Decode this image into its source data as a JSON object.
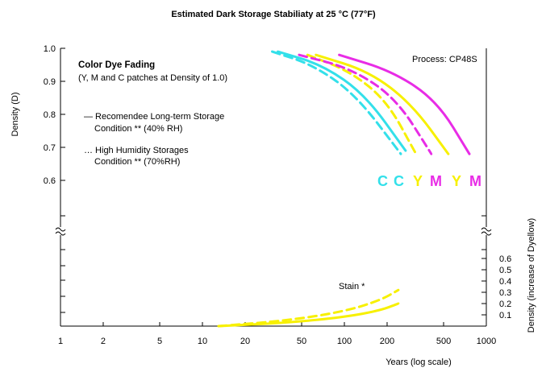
{
  "chart_data": {
    "type": "line",
    "title": "Estimated Dark Storage Stabiliaty at 25 °C (77°F)",
    "xlabel": "Years (log scale)",
    "ylabel": "Density (D)",
    "y2label": "Density (increase of Dyellow)",
    "x_scale": "log",
    "xlim": [
      1,
      1000
    ],
    "ylim": [
      0.55,
      1.0
    ],
    "y2lim": [
      0.0,
      0.6
    ],
    "grid": false,
    "x_ticks": [
      "1",
      "2",
      "5",
      "10",
      "20",
      "50",
      "100",
      "200",
      "500",
      "1000"
    ],
    "y_ticks": [
      "1.0",
      "0.9",
      "0.8",
      "0.7",
      "0.6"
    ],
    "y2_ticks": [
      "0.6",
      "0.5",
      "0.4",
      "0.3",
      "0.2",
      "0.1"
    ],
    "annotations": {
      "process": "Process: CP48S",
      "fading_title": "Color Dye Fading",
      "fading_sub": "(Y, M and C patches at Density of 1.0)",
      "legend_solid_1": "— Recomendee Long-term Storage",
      "legend_solid_2": "Condition ** (40% RH)",
      "legend_dotted_1": "… High Humidity Storages",
      "legend_dotted_2": "Condition ** (70%RH)",
      "stain": "Stain *"
    },
    "curve_labels": [
      "C",
      "C",
      "Y",
      "M",
      "Y",
      "M"
    ],
    "colors": {
      "cyan": "#33e0ea",
      "yellow": "#f7f000",
      "magenta": "#e82ce6"
    },
    "series": [
      {
        "label": "C",
        "color": "cyan",
        "style": "dashed",
        "x": [
          31,
          60,
          120,
          250
        ],
        "y": [
          0.99,
          0.95,
          0.86,
          0.68
        ]
      },
      {
        "label": "C",
        "color": "cyan",
        "style": "solid",
        "x": [
          34,
          70,
          140,
          270
        ],
        "y": [
          0.99,
          0.95,
          0.86,
          0.69
        ]
      },
      {
        "label": "Y",
        "color": "yellow",
        "style": "dashed",
        "x": [
          55,
          110,
          200,
          320
        ],
        "y": [
          0.98,
          0.93,
          0.84,
          0.68
        ]
      },
      {
        "label": "M",
        "color": "magenta",
        "style": "dashed",
        "x": [
          48,
          110,
          230,
          410
        ],
        "y": [
          0.98,
          0.94,
          0.85,
          0.68
        ]
      },
      {
        "label": "Y",
        "color": "yellow",
        "style": "solid",
        "x": [
          63,
          150,
          300,
          540
        ],
        "y": [
          0.98,
          0.93,
          0.83,
          0.68
        ]
      },
      {
        "label": "M",
        "color": "magenta",
        "style": "solid",
        "x": [
          92,
          220,
          450,
          760
        ],
        "y": [
          0.98,
          0.93,
          0.84,
          0.68
        ]
      },
      {
        "label": "Stain",
        "color": "yellow",
        "style": "dashed",
        "axis": "y2",
        "x": [
          13,
          40,
          100,
          180,
          240
        ],
        "y": [
          0.0,
          0.05,
          0.13,
          0.23,
          0.32
        ]
      },
      {
        "label": "Stain",
        "color": "yellow",
        "style": "solid",
        "axis": "y2",
        "x": [
          13,
          40,
          100,
          180,
          240
        ],
        "y": [
          0.0,
          0.03,
          0.08,
          0.14,
          0.2
        ]
      }
    ]
  }
}
